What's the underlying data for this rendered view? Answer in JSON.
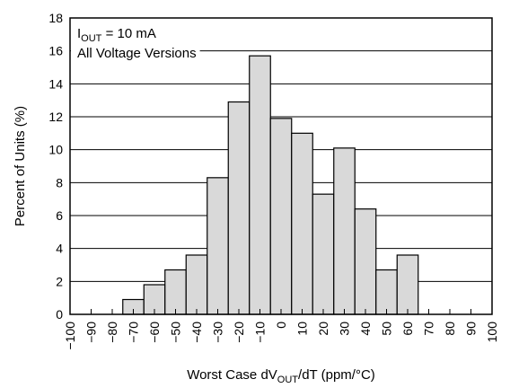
{
  "chart_data": {
    "type": "bar",
    "subtype": "histogram",
    "annotation": {
      "line1_main": "I",
      "line1_sub": "OUT",
      "line1_rest": " = 10 mA",
      "line2": "All Voltage Versions"
    },
    "xlabel": {
      "main": "Worst Case dV",
      "sub": "OUT",
      "rest": "/dT (ppm/°C)"
    },
    "ylabel": "Percent of Units (%)",
    "xlim": [
      -100,
      100
    ],
    "ylim": [
      0,
      18
    ],
    "x_ticks": [
      "−100",
      "−90",
      "−80",
      "−70",
      "−60",
      "−50",
      "−40",
      "−30",
      "−20",
      "−10",
      "0",
      "10",
      "20",
      "30",
      "40",
      "50",
      "60",
      "70",
      "80",
      "90",
      "100"
    ],
    "y_ticks": [
      "0",
      "2",
      "4",
      "6",
      "8",
      "10",
      "12",
      "14",
      "16",
      "18"
    ],
    "bin_width": 10,
    "bins": [
      {
        "x": -70,
        "value": 0.9
      },
      {
        "x": -60,
        "value": 1.8
      },
      {
        "x": -50,
        "value": 2.7
      },
      {
        "x": -40,
        "value": 3.6
      },
      {
        "x": -30,
        "value": 8.3
      },
      {
        "x": -20,
        "value": 12.9
      },
      {
        "x": -10,
        "value": 15.7
      },
      {
        "x": 0,
        "value": 11.9
      },
      {
        "x": 10,
        "value": 11.0
      },
      {
        "x": 20,
        "value": 7.3
      },
      {
        "x": 30,
        "value": 10.1
      },
      {
        "x": 40,
        "value": 6.4
      },
      {
        "x": 50,
        "value": 2.7
      },
      {
        "x": 60,
        "value": 3.6
      }
    ],
    "grid": "horizontal",
    "legend": "none"
  }
}
